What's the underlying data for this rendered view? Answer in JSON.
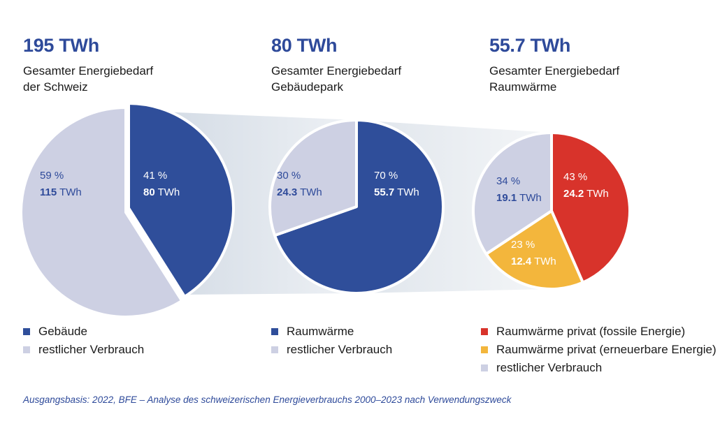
{
  "colors": {
    "blue": "#2f4e9a",
    "light": "#cdd0e3",
    "red": "#d8332b",
    "yellow": "#f3b63c",
    "heading": "#2e4a9a"
  },
  "headers": [
    {
      "value": "195 TWh",
      "line1": "Gesamter Energiebedarf",
      "line2": "der Schweiz"
    },
    {
      "value": "80 TWh",
      "line1": "Gesamter Energiebedarf",
      "line2": "Gebäudepark"
    },
    {
      "value": "55.7 TWh",
      "line1": "Gesamter Energiebedarf",
      "line2": "Raumwärme"
    }
  ],
  "chart_data": [
    {
      "type": "pie",
      "title": "195 TWh",
      "slices": [
        {
          "name": "Gebäude",
          "percent_label": "41 %",
          "value": 80,
          "value_label": "80",
          "unit": "TWh",
          "color": "#2f4e9a"
        },
        {
          "name": "restlicher Verbrauch",
          "percent_label": "59 %",
          "value": 115,
          "value_label": "115",
          "unit": "TWh",
          "color": "#cdd0e3"
        }
      ]
    },
    {
      "type": "pie",
      "title": "80 TWh",
      "slices": [
        {
          "name": "Raumwärme",
          "percent_label": "70 %",
          "value": 55.7,
          "value_label": "55.7",
          "unit": "TWh",
          "color": "#2f4e9a"
        },
        {
          "name": "restlicher Verbrauch",
          "percent_label": "30 %",
          "value": 24.3,
          "value_label": "24.3",
          "unit": "TWh",
          "color": "#cdd0e3"
        }
      ]
    },
    {
      "type": "pie",
      "title": "55.7 TWh",
      "slices": [
        {
          "name": "Raumwärme privat (fossile Energie)",
          "percent_label": "43 %",
          "value": 24.2,
          "value_label": "24.2",
          "unit": "TWh",
          "color": "#d8332b"
        },
        {
          "name": "Raumwärme privat (erneuerbare Energie)",
          "percent_label": "23 %",
          "value": 12.4,
          "value_label": "12.4",
          "unit": "TWh",
          "color": "#f3b63c"
        },
        {
          "name": "restlicher Verbrauch",
          "percent_label": "34 %",
          "value": 19.1,
          "value_label": "19.1",
          "unit": "TWh",
          "color": "#cdd0e3"
        }
      ]
    }
  ],
  "legends": [
    [
      {
        "label": "Gebäude",
        "color": "#2f4e9a"
      },
      {
        "label": "restlicher Verbrauch",
        "color": "#cdd0e3"
      }
    ],
    [
      {
        "label": "Raumwärme",
        "color": "#2f4e9a"
      },
      {
        "label": "restlicher Verbrauch",
        "color": "#cdd0e3"
      }
    ],
    [
      {
        "label": "Raumwärme privat (fossile Energie)",
        "color": "#d8332b"
      },
      {
        "label": "Raumwärme privat (erneuerbare Energie)",
        "color": "#f3b63c"
      },
      {
        "label": "restlicher Verbrauch",
        "color": "#cdd0e3"
      }
    ]
  ],
  "source": "Ausgangsbasis: 2022, BFE – Analyse des schweizerischen Energieverbrauchs 2000–2023 nach Verwendungszweck"
}
